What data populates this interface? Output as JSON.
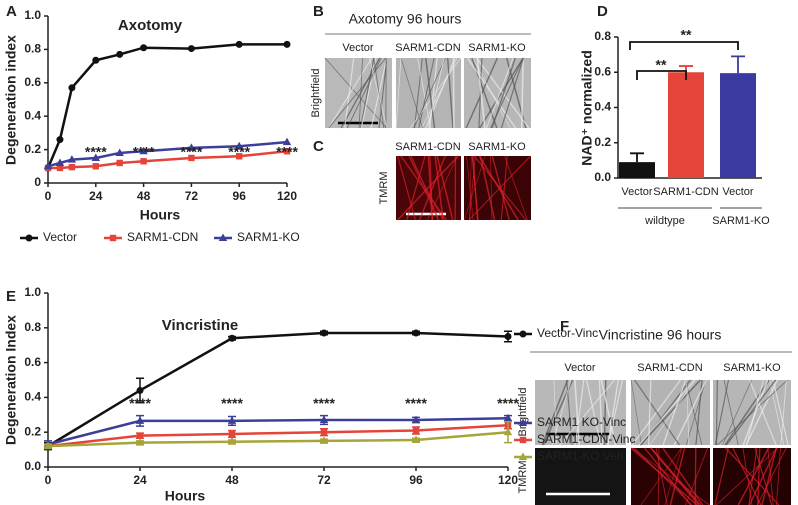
{
  "chart_data": [
    {
      "type": "line",
      "panel_label": "A",
      "title": "Axotomy",
      "x_label": "Hours",
      "y_label": "Degeneration index",
      "xlim": [
        0,
        120
      ],
      "xticks": [
        0,
        24,
        48,
        72,
        96,
        120
      ],
      "ylim": [
        0,
        1
      ],
      "yticks": [
        0,
        0.2,
        0.4,
        0.6,
        0.8,
        {
          "value": 1,
          "label": "1.0"
        }
      ],
      "x": [
        0,
        6,
        12,
        24,
        36,
        48,
        72,
        96,
        120
      ],
      "series": [
        {
          "name": "Vector",
          "color": "#111111",
          "marker": "circle",
          "values": [
            0.09,
            0.26,
            0.57,
            0.735,
            0.77,
            0.81,
            0.805,
            0.83,
            0.83
          ]
        },
        {
          "name": "SARM1-CDN",
          "color": "#e4443a",
          "marker": "square",
          "values": [
            0.09,
            0.09,
            0.095,
            0.1,
            0.12,
            0.13,
            0.15,
            0.16,
            0.19
          ]
        },
        {
          "name": "SARM1-KO",
          "color": "#3c3f98",
          "marker": "triangle",
          "values": [
            0.1,
            0.12,
            0.14,
            0.15,
            0.18,
            0.19,
            0.21,
            0.22,
            0.245
          ]
        }
      ],
      "annotations": [
        "****",
        "****",
        "****",
        "****",
        "****"
      ],
      "legend": "bottom"
    },
    {
      "type": "bar",
      "panel_label": "D",
      "y_label": "NAD⁺ normalized",
      "categories": [
        "Vector",
        "SARM1-CDN",
        "Vector"
      ],
      "values": [
        0.09,
        0.6,
        0.595
      ],
      "errors": [
        0.05,
        0.035,
        0.095
      ],
      "colors": [
        "#111111",
        "#e4443a",
        "#3a3aa0"
      ],
      "ylim": [
        0,
        0.8
      ],
      "yticks": [
        {
          "value": 0,
          "label": "0.0"
        },
        0.2,
        0.4,
        0.6,
        0.8
      ],
      "groups": [
        "wildtype",
        "SARM1-KO"
      ],
      "annotations": [
        "**",
        "**"
      ]
    },
    {
      "type": "line",
      "panel_label": "E",
      "title": "Vincristine",
      "x_label": "Hours",
      "y_label": "Degeneration Index",
      "xlim": [
        0,
        120
      ],
      "xticks": [
        0,
        24,
        48,
        72,
        96,
        120
      ],
      "ylim": [
        0,
        1
      ],
      "yticks": [
        {
          "value": 0,
          "label": "0.0"
        },
        0.2,
        0.4,
        0.6,
        0.8,
        {
          "value": 1,
          "label": "1.0"
        }
      ],
      "x": [
        0,
        24,
        48,
        72,
        96,
        120
      ],
      "series": [
        {
          "name": "Vector-Vinc",
          "color": "#111111",
          "marker": "circle",
          "values": [
            0.12,
            0.44,
            0.74,
            0.77,
            0.77,
            0.75
          ],
          "errors": [
            0.02,
            0.07,
            0.01,
            0.01,
            0.01,
            0.03
          ]
        },
        {
          "name": "SARM1 KO-Vinc",
          "color": "#3c3f98",
          "marker": "triangle",
          "values": [
            0.13,
            0.265,
            0.265,
            0.27,
            0.27,
            0.28
          ],
          "errors": [
            0.02,
            0.03,
            0.025,
            0.025,
            0.015,
            0.015
          ]
        },
        {
          "name": "SARM1-CDN-Vinc",
          "color": "#e4443a",
          "marker": "square",
          "values": [
            0.12,
            0.18,
            0.19,
            0.2,
            0.21,
            0.24
          ],
          "errors": [
            0.01,
            0.015,
            0.02,
            0.02,
            0.02,
            0.02
          ]
        },
        {
          "name": "SARM1-KO Veh",
          "color": "#a5a53a",
          "marker": "triangle",
          "values": [
            0.12,
            0.14,
            0.145,
            0.15,
            0.155,
            0.2
          ],
          "errors": [
            0.01,
            0.01,
            0.01,
            0.01,
            0.01,
            0.06
          ]
        }
      ],
      "annotations": [
        "****",
        "****",
        "****",
        "****",
        "****"
      ],
      "legend": "right"
    }
  ],
  "panels": {
    "B": {
      "label": "B",
      "title": "Axotomy 96 hours",
      "columns": [
        "Vector",
        "SARM1-CDN",
        "SARM1-KO"
      ],
      "row": "Brightfield"
    },
    "C": {
      "label": "C",
      "columns": [
        "SARM1-CDN",
        "SARM1-KO"
      ],
      "row": "TMRM"
    },
    "F": {
      "label": "F",
      "title": "Vincristine 96 hours",
      "columns": [
        "Vector",
        "SARM1-CDN",
        "SARM1-KO"
      ],
      "rows": [
        "Brightfield",
        "TMRM"
      ]
    }
  }
}
